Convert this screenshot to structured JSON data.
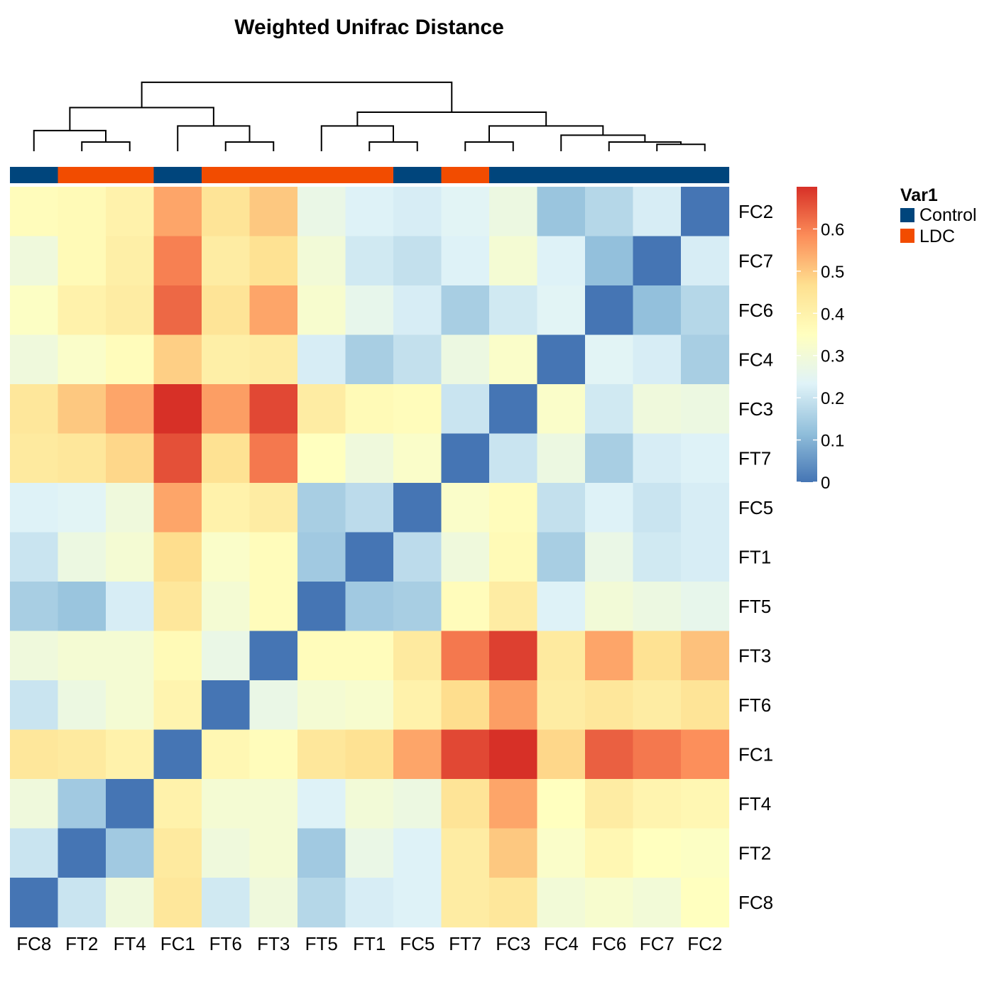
{
  "chart_data": {
    "type": "heatmap",
    "title": "Weighted Unifrac Distance",
    "columns": [
      "FC8",
      "FT2",
      "FT4",
      "FC1",
      "FT6",
      "FT3",
      "FT5",
      "FT1",
      "FC5",
      "FT7",
      "FC3",
      "FC4",
      "FC6",
      "FC7",
      "FC2"
    ],
    "rows": [
      "FC2",
      "FC7",
      "FC6",
      "FC4",
      "FC3",
      "FT7",
      "FC5",
      "FT1",
      "FT5",
      "FT3",
      "FT6",
      "FC1",
      "FT4",
      "FT2",
      "FC8"
    ],
    "values": [
      [
        0.36,
        0.37,
        0.4,
        0.55,
        0.45,
        0.5,
        0.27,
        0.23,
        0.22,
        0.24,
        0.28,
        0.13,
        0.17,
        0.22,
        0.0
      ],
      [
        0.29,
        0.37,
        0.41,
        0.6,
        0.42,
        0.46,
        0.3,
        0.21,
        0.19,
        0.23,
        0.31,
        0.23,
        0.12,
        0.0,
        0.22
      ],
      [
        0.34,
        0.4,
        0.42,
        0.63,
        0.45,
        0.55,
        0.32,
        0.26,
        0.22,
        0.15,
        0.21,
        0.24,
        0.0,
        0.12,
        0.17
      ],
      [
        0.29,
        0.33,
        0.36,
        0.49,
        0.41,
        0.42,
        0.22,
        0.15,
        0.19,
        0.28,
        0.33,
        0.0,
        0.24,
        0.22,
        0.15
      ],
      [
        0.44,
        0.5,
        0.55,
        0.7,
        0.56,
        0.67,
        0.42,
        0.37,
        0.36,
        0.2,
        0.0,
        0.33,
        0.21,
        0.29,
        0.28
      ],
      [
        0.43,
        0.44,
        0.48,
        0.66,
        0.46,
        0.61,
        0.35,
        0.29,
        0.33,
        0.0,
        0.2,
        0.28,
        0.15,
        0.22,
        0.23
      ],
      [
        0.23,
        0.24,
        0.29,
        0.55,
        0.4,
        0.42,
        0.15,
        0.18,
        0.0,
        0.33,
        0.36,
        0.19,
        0.23,
        0.2,
        0.22
      ],
      [
        0.2,
        0.28,
        0.31,
        0.47,
        0.33,
        0.36,
        0.14,
        0.0,
        0.18,
        0.29,
        0.37,
        0.15,
        0.27,
        0.21,
        0.22
      ],
      [
        0.15,
        0.13,
        0.22,
        0.44,
        0.31,
        0.36,
        0.0,
        0.14,
        0.15,
        0.36,
        0.42,
        0.23,
        0.3,
        0.28,
        0.26
      ],
      [
        0.29,
        0.31,
        0.31,
        0.37,
        0.27,
        0.0,
        0.36,
        0.36,
        0.43,
        0.61,
        0.68,
        0.43,
        0.55,
        0.46,
        0.51
      ],
      [
        0.2,
        0.28,
        0.31,
        0.39,
        0.0,
        0.27,
        0.31,
        0.32,
        0.4,
        0.47,
        0.56,
        0.42,
        0.44,
        0.42,
        0.45
      ],
      [
        0.44,
        0.43,
        0.4,
        0.0,
        0.38,
        0.36,
        0.44,
        0.46,
        0.55,
        0.67,
        0.71,
        0.48,
        0.64,
        0.61,
        0.58
      ],
      [
        0.29,
        0.14,
        0.0,
        0.4,
        0.31,
        0.31,
        0.23,
        0.3,
        0.28,
        0.45,
        0.55,
        0.35,
        0.42,
        0.39,
        0.38
      ],
      [
        0.2,
        0.0,
        0.14,
        0.43,
        0.29,
        0.31,
        0.14,
        0.27,
        0.23,
        0.42,
        0.5,
        0.33,
        0.38,
        0.35,
        0.34
      ],
      [
        0.0,
        0.2,
        0.29,
        0.44,
        0.21,
        0.29,
        0.17,
        0.22,
        0.23,
        0.42,
        0.44,
        0.3,
        0.32,
        0.3,
        0.35
      ]
    ],
    "column_annotation": [
      "Control",
      "LDC",
      "LDC",
      "Control",
      "LDC",
      "LDC",
      "LDC",
      "LDC",
      "Control",
      "LDC",
      "Control",
      "Control",
      "Control",
      "Control",
      "Control"
    ],
    "color_scale": {
      "range": [
        0,
        0.7
      ],
      "stops": [
        "#4575b4",
        "#91bfdb",
        "#e0f3f8",
        "#ffffbf",
        "#fee090",
        "#fc8d59",
        "#d73027"
      ],
      "ticks": [
        0,
        0.1,
        0.2,
        0.3,
        0.4,
        0.5,
        0.6
      ],
      "tick_labels": [
        "0",
        "0.1",
        "0.2",
        "0.3",
        "0.4",
        "0.5",
        "0.6"
      ]
    },
    "annotation_legend": {
      "title": "Var1",
      "items": [
        {
          "label": "Control",
          "color": "#00457c"
        },
        {
          "label": "LDC",
          "color": "#f24c00"
        }
      ]
    },
    "dendrogram": {
      "merges": [
        [
          1,
          2,
          0.2
        ],
        [
          13,
          14,
          0.15
        ],
        [
          12,
          16,
          0.2
        ],
        [
          11,
          17,
          0.35
        ],
        [
          9,
          10,
          0.2
        ],
        [
          18,
          19,
          0.55
        ],
        [
          7,
          8,
          0.2
        ],
        [
          6,
          21,
          0.55
        ],
        [
          20,
          22,
          0.85
        ],
        [
          4,
          5,
          0.2
        ],
        [
          3,
          24,
          0.55
        ],
        [
          0,
          15,
          0.45
        ],
        [
          25,
          26,
          0.95
        ],
        [
          23,
          27,
          1.5
        ]
      ],
      "max_height": 2.1
    },
    "legend_placement": "right",
    "grid": false
  }
}
